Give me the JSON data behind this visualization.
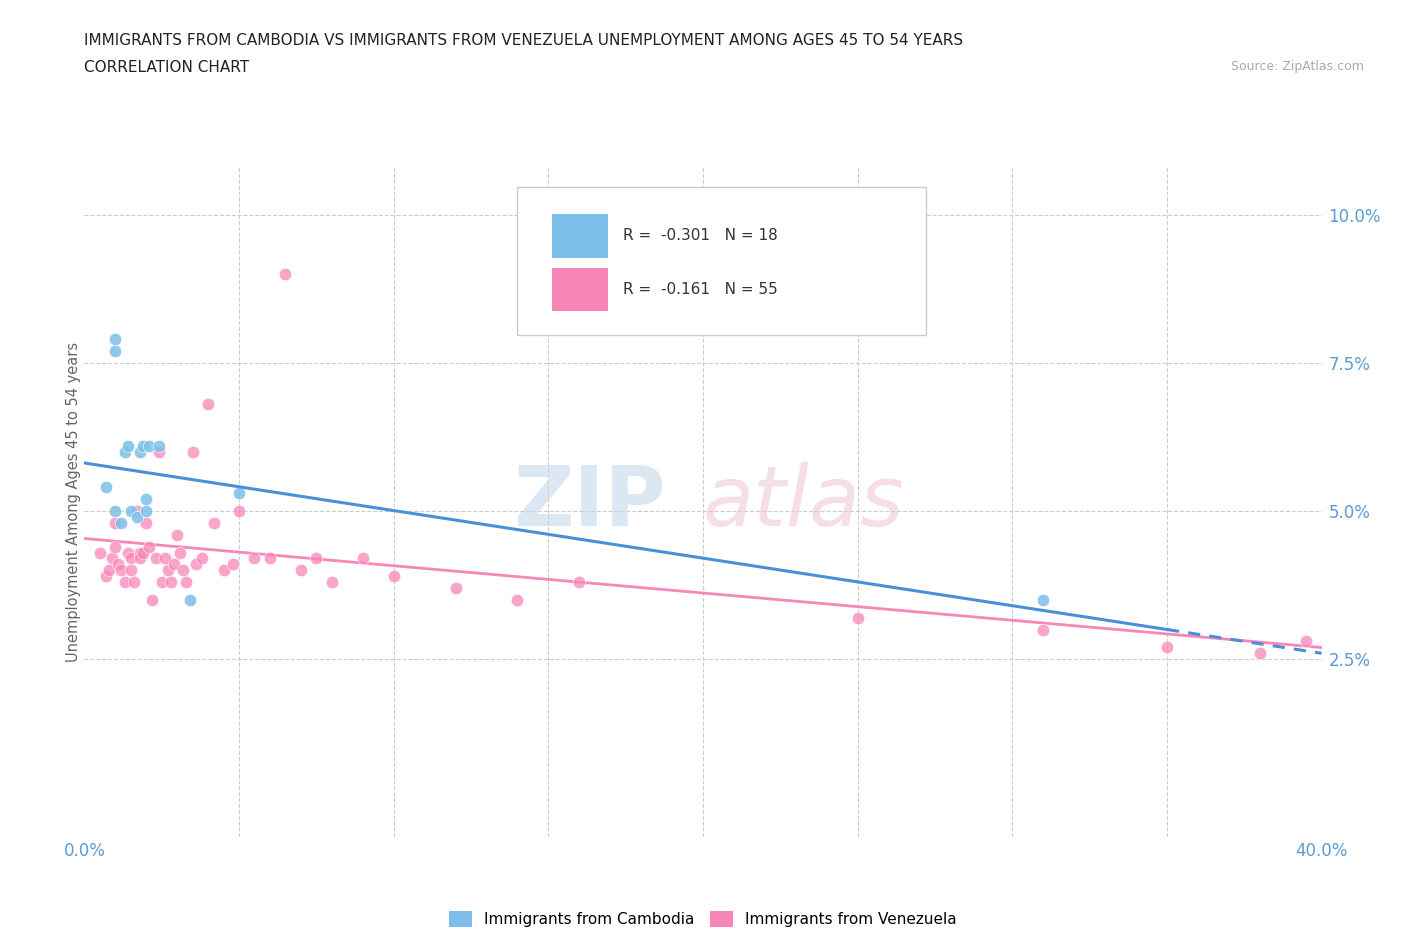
{
  "title_line1": "IMMIGRANTS FROM CAMBODIA VS IMMIGRANTS FROM VENEZUELA UNEMPLOYMENT AMONG AGES 45 TO 54 YEARS",
  "title_line2": "CORRELATION CHART",
  "source_text": "Source: ZipAtlas.com",
  "ylabel": "Unemployment Among Ages 45 to 54 years",
  "xlim": [
    0.0,
    0.4
  ],
  "ylim": [
    -0.005,
    0.108
  ],
  "yticks": [
    0.0,
    0.025,
    0.05,
    0.075,
    0.1
  ],
  "ytick_labels": [
    "",
    "2.5%",
    "5.0%",
    "7.5%",
    "10.0%"
  ],
  "xticks": [
    0.0,
    0.05,
    0.1,
    0.15,
    0.2,
    0.25,
    0.3,
    0.35,
    0.4
  ],
  "xtick_labels": [
    "0.0%",
    "",
    "",
    "",
    "",
    "",
    "",
    "",
    "40.0%"
  ],
  "cambodia_r": -0.301,
  "cambodia_n": 18,
  "venezuela_r": -0.161,
  "venezuela_n": 55,
  "cambodia_color": "#7dbfe8",
  "venezuela_color": "#f986b8",
  "cambodia_line_color": "#4a90d9",
  "venezuela_line_color": "#f986b8",
  "cambodia_x": [
    0.007,
    0.01,
    0.01,
    0.01,
    0.012,
    0.013,
    0.014,
    0.015,
    0.017,
    0.018,
    0.019,
    0.02,
    0.02,
    0.021,
    0.024,
    0.034,
    0.05,
    0.31
  ],
  "cambodia_y": [
    0.054,
    0.079,
    0.077,
    0.05,
    0.048,
    0.06,
    0.061,
    0.05,
    0.049,
    0.06,
    0.061,
    0.052,
    0.05,
    0.061,
    0.061,
    0.035,
    0.053,
    0.035
  ],
  "venezuela_x": [
    0.005,
    0.007,
    0.008,
    0.009,
    0.01,
    0.01,
    0.011,
    0.012,
    0.013,
    0.014,
    0.015,
    0.015,
    0.016,
    0.017,
    0.018,
    0.018,
    0.019,
    0.02,
    0.021,
    0.022,
    0.023,
    0.024,
    0.025,
    0.026,
    0.027,
    0.028,
    0.029,
    0.03,
    0.031,
    0.032,
    0.033,
    0.035,
    0.036,
    0.038,
    0.04,
    0.042,
    0.045,
    0.048,
    0.05,
    0.055,
    0.06,
    0.065,
    0.07,
    0.075,
    0.08,
    0.09,
    0.1,
    0.12,
    0.14,
    0.16,
    0.25,
    0.31,
    0.35,
    0.38,
    0.395
  ],
  "venezuela_y": [
    0.043,
    0.039,
    0.04,
    0.042,
    0.048,
    0.044,
    0.041,
    0.04,
    0.038,
    0.043,
    0.042,
    0.04,
    0.038,
    0.05,
    0.043,
    0.042,
    0.043,
    0.048,
    0.044,
    0.035,
    0.042,
    0.06,
    0.038,
    0.042,
    0.04,
    0.038,
    0.041,
    0.046,
    0.043,
    0.04,
    0.038,
    0.06,
    0.041,
    0.042,
    0.068,
    0.048,
    0.04,
    0.041,
    0.05,
    0.042,
    0.042,
    0.09,
    0.04,
    0.042,
    0.038,
    0.042,
    0.039,
    0.037,
    0.035,
    0.038,
    0.032,
    0.03,
    0.027,
    0.026,
    0.028
  ]
}
